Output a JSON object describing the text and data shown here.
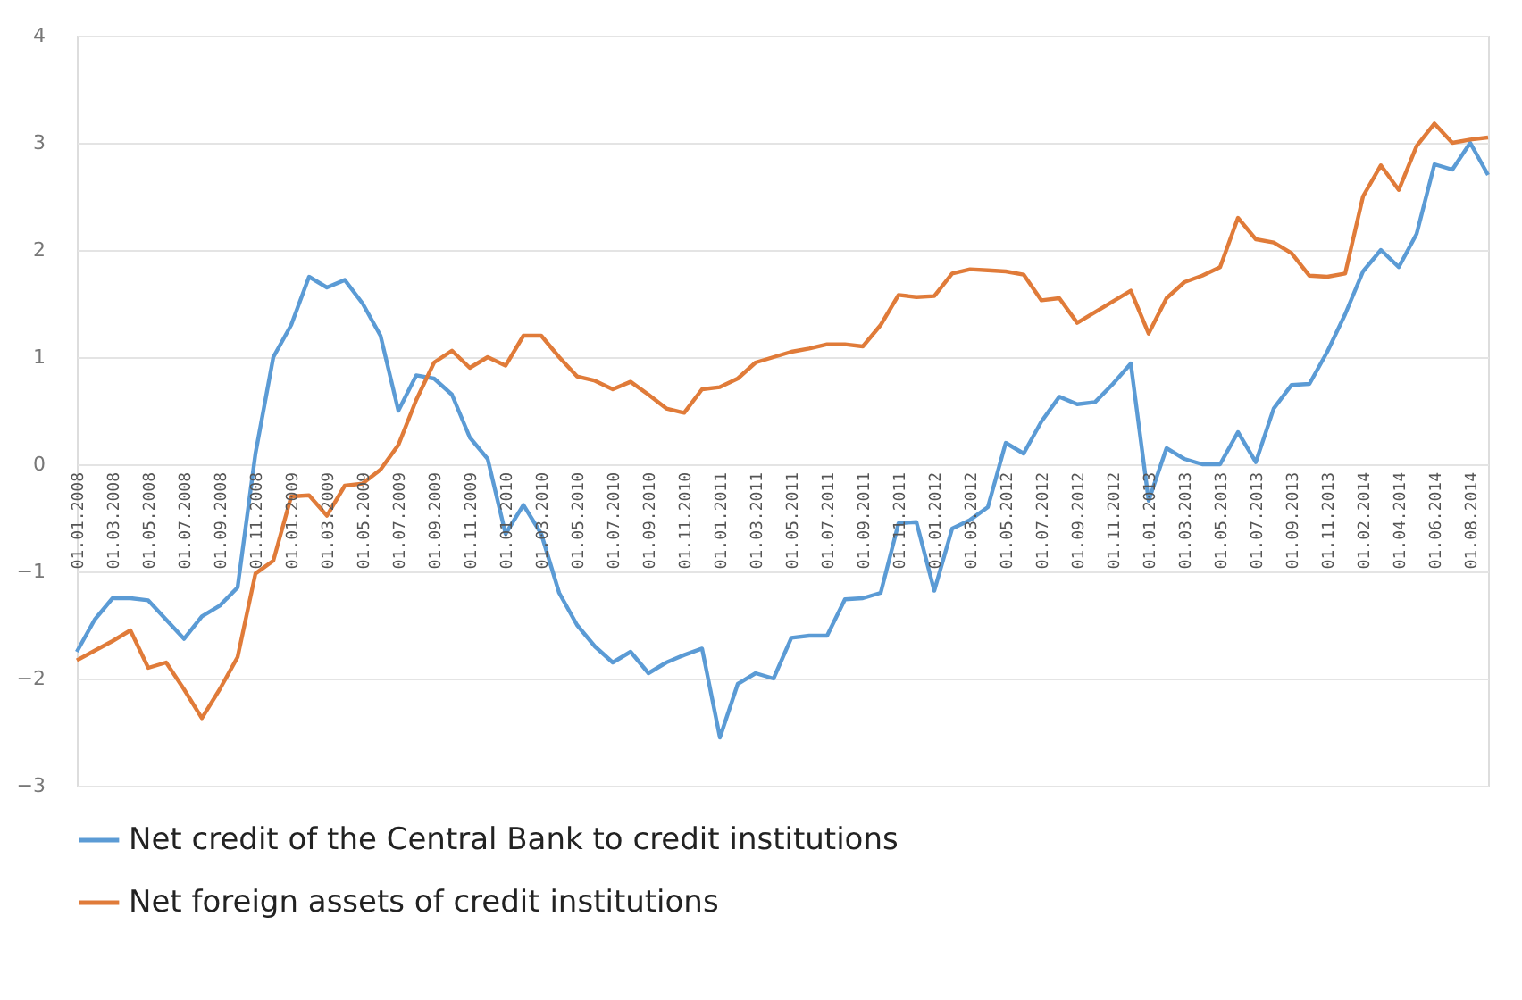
{
  "chart_data": {
    "type": "line",
    "categories": [
      "01.01.2008",
      null,
      "01.03.2008",
      null,
      "01.05.2008",
      null,
      "01.07.2008",
      null,
      "01.09.2008",
      null,
      "01.11.2008",
      null,
      "01.01.2009",
      null,
      "01.03.2009",
      null,
      "01.05.2009",
      null,
      "01.07.2009",
      null,
      "01.09.2009",
      null,
      "01.11.2009",
      null,
      "01.01.2010",
      null,
      "01.03.2010",
      null,
      "01.05.2010",
      null,
      "01.07.2010",
      null,
      "01.09.2010",
      null,
      "01.11.2010",
      null,
      "01.01.2011",
      null,
      "01.03.2011",
      null,
      "01.05.2011",
      null,
      "01.07.2011",
      null,
      "01.09.2011",
      null,
      "01.11.2011",
      null,
      "01.01.2012",
      null,
      "01.03.2012",
      null,
      "01.05.2012",
      null,
      "01.07.2012",
      null,
      "01.09.2012",
      null,
      "01.11.2012",
      null,
      "01.01.2013",
      null,
      "01.03.2013",
      null,
      "01.05.2013",
      null,
      "01.07.2013",
      null,
      "01.09.2013",
      null,
      "01.11.2013",
      null,
      "01.02.2014",
      null,
      "01.04.2014",
      null,
      "01.06.2014",
      null,
      "01.08.2014",
      null
    ],
    "series": [
      {
        "name": "Net credit of the Central Bank to credit institutions",
        "color": "#5b9bd5",
        "values": [
          -1.75,
          -1.45,
          -1.25,
          -1.25,
          -1.27,
          -1.45,
          -1.63,
          -1.42,
          -1.32,
          -1.15,
          0.1,
          1.0,
          1.3,
          1.75,
          1.65,
          1.72,
          1.5,
          1.2,
          0.5,
          0.83,
          0.8,
          0.65,
          0.25,
          0.05,
          -0.65,
          -0.38,
          -0.65,
          -1.2,
          -1.5,
          -1.7,
          -1.85,
          -1.75,
          -1.95,
          -1.85,
          -1.78,
          -1.72,
          -2.55,
          -2.05,
          -1.95,
          -2.0,
          -1.62,
          -1.6,
          -1.6,
          -1.26,
          -1.25,
          -1.2,
          -0.55,
          -0.54,
          -1.18,
          -0.6,
          -0.52,
          -0.4,
          0.2,
          0.1,
          0.4,
          0.63,
          0.56,
          0.58,
          0.75,
          0.94,
          -0.34,
          0.15,
          0.05,
          0.0,
          0.0,
          0.3,
          0.02,
          0.52,
          0.74,
          0.75,
          1.05,
          1.4,
          1.8,
          2.0,
          1.84,
          2.15,
          2.8,
          2.75,
          3.0,
          2.7
        ]
      },
      {
        "name": "Net foreign assets of credit institutions",
        "color": "#e07b39",
        "values": [
          -1.83,
          -1.74,
          -1.65,
          -1.55,
          -1.9,
          -1.85,
          -2.1,
          -2.37,
          -2.1,
          -1.8,
          -1.02,
          -0.9,
          -0.3,
          -0.29,
          -0.48,
          -0.2,
          -0.18,
          -0.05,
          0.18,
          0.6,
          0.95,
          1.06,
          0.9,
          1.0,
          0.92,
          1.2,
          1.2,
          1.0,
          0.82,
          0.78,
          0.7,
          0.77,
          0.65,
          0.52,
          0.48,
          0.7,
          0.72,
          0.8,
          0.95,
          1.0,
          1.05,
          1.08,
          1.12,
          1.12,
          1.1,
          1.3,
          1.58,
          1.56,
          1.57,
          1.78,
          1.82,
          1.81,
          1.8,
          1.77,
          1.53,
          1.55,
          1.32,
          1.42,
          1.52,
          1.62,
          1.22,
          1.55,
          1.7,
          1.76,
          1.84,
          2.3,
          2.1,
          2.07,
          1.97,
          1.76,
          1.75,
          1.78,
          2.5,
          2.79,
          2.56,
          2.97,
          3.18,
          3.0,
          3.03,
          3.05
        ]
      }
    ],
    "ylim": [
      -3,
      4
    ],
    "yticks": [
      -3,
      -2,
      -1,
      0,
      1,
      2,
      3,
      4
    ],
    "grid": "y",
    "legend": "bottom",
    "marker": "none",
    "line_style": "solid"
  }
}
